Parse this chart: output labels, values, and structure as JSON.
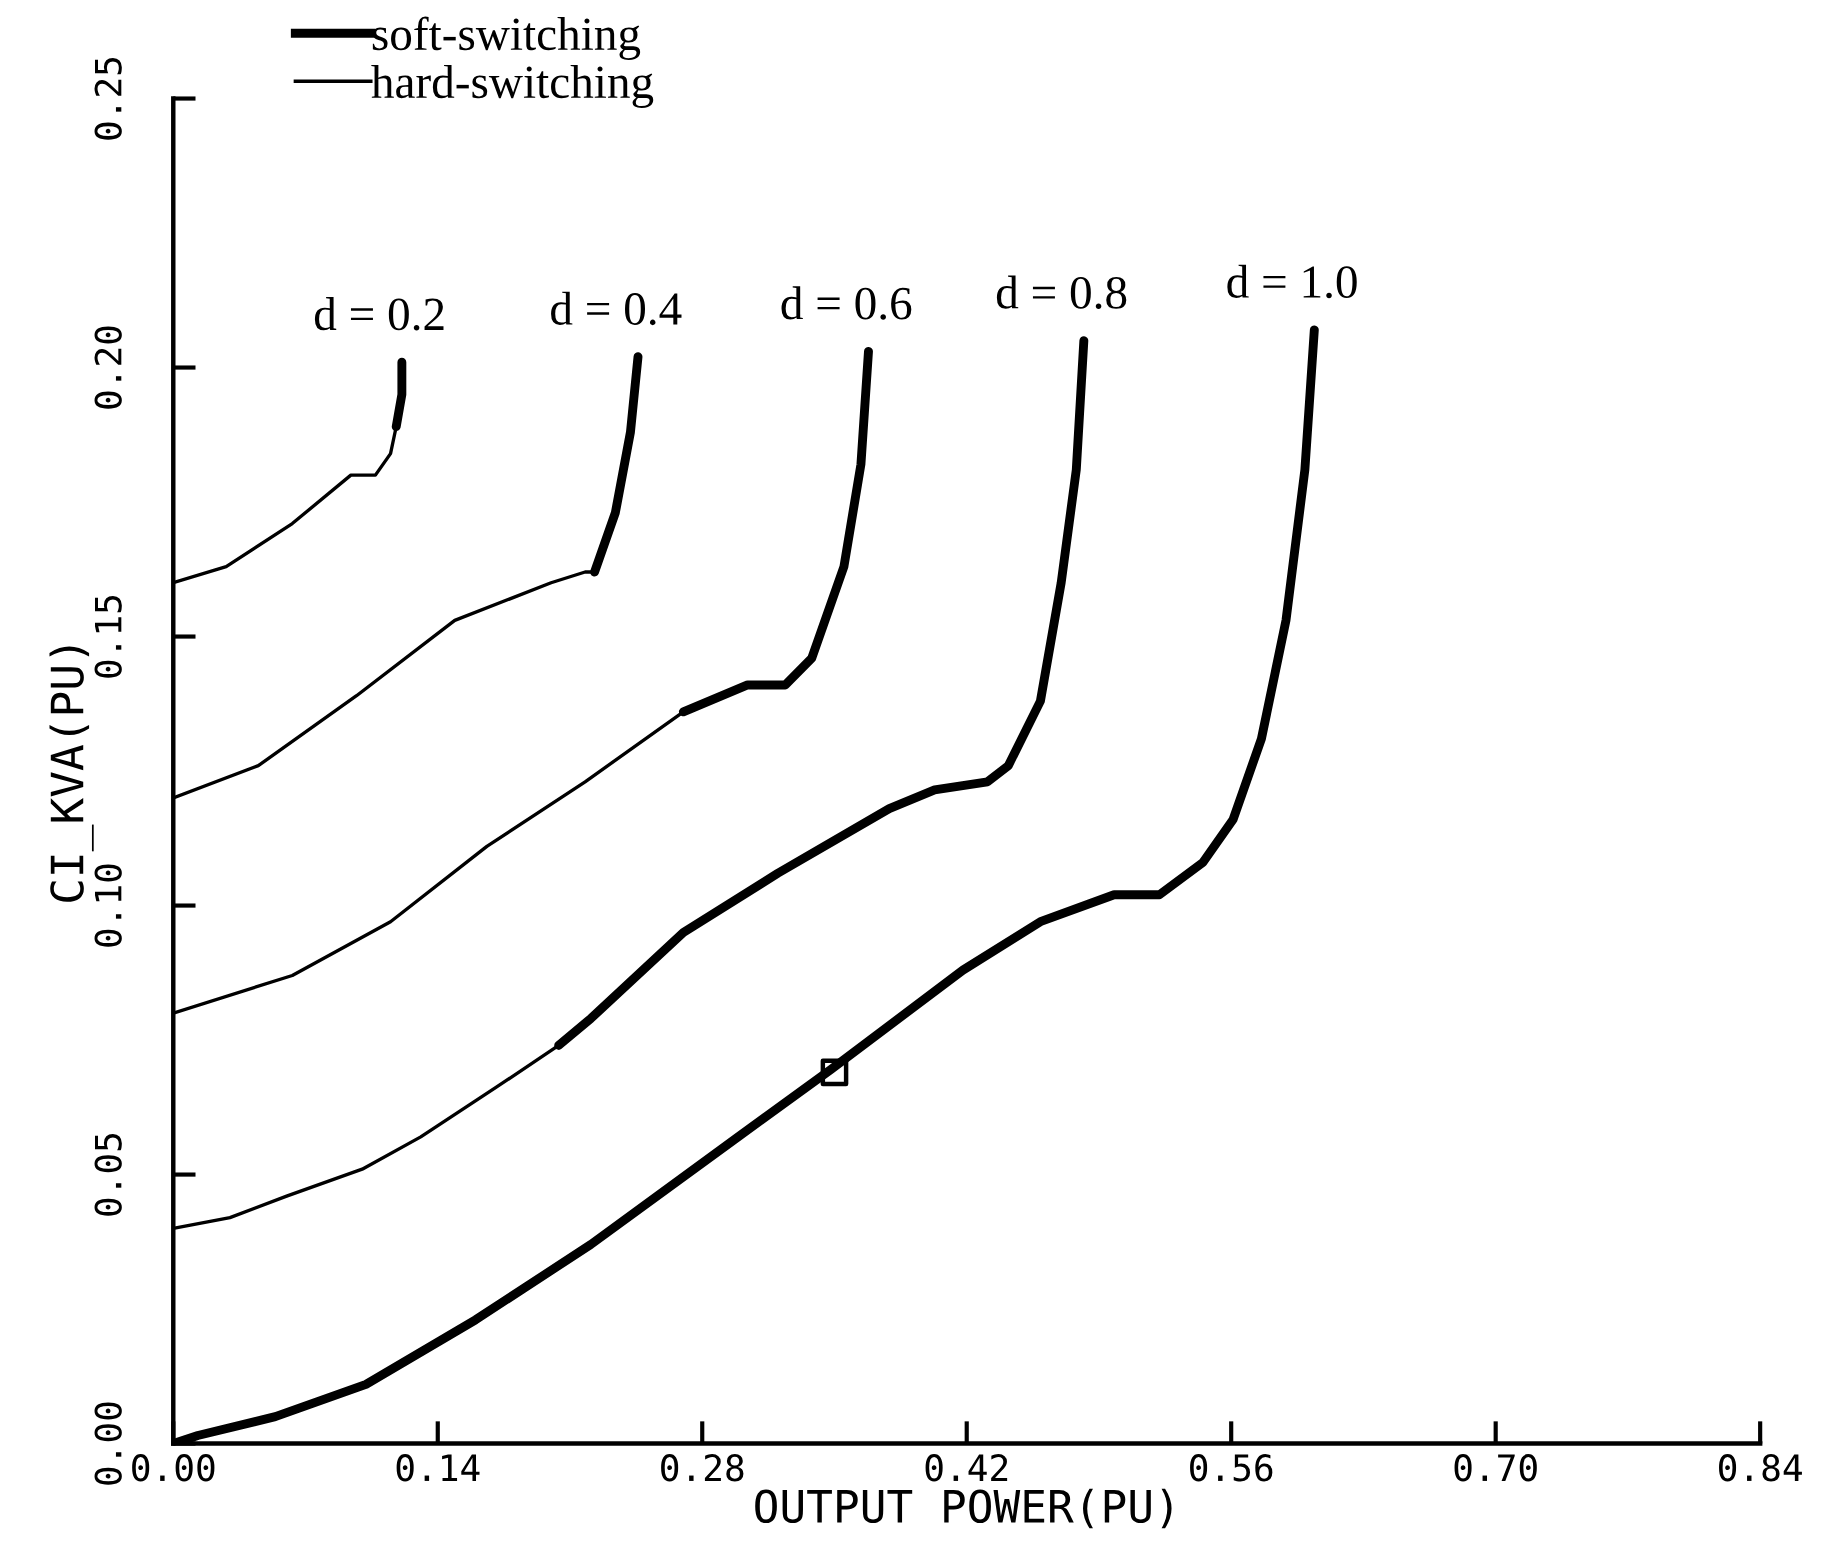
{
  "chart_data": {
    "type": "line",
    "xlabel": "OUTPUT POWER(PU)",
    "ylabel": "CI_KVA(PU)",
    "xlim": [
      0,
      0.84
    ],
    "ylim": [
      0,
      0.25
    ],
    "xticks": [
      {
        "value": 0,
        "label": "0.00"
      },
      {
        "value": 0.14,
        "label": "0.14"
      },
      {
        "value": 0.28,
        "label": "0.28"
      },
      {
        "value": 0.42,
        "label": "0.42"
      },
      {
        "value": 0.56,
        "label": "0.56"
      },
      {
        "value": 0.7,
        "label": "0.70"
      },
      {
        "value": 0.84,
        "label": "0.84"
      }
    ],
    "yticks": [
      {
        "value": 0,
        "label": "0.00"
      },
      {
        "value": 0.05,
        "label": "0.05"
      },
      {
        "value": 0.1,
        "label": "0.10"
      },
      {
        "value": 0.15,
        "label": "0.15"
      },
      {
        "value": 0.2,
        "label": "0.20"
      },
      {
        "value": 0.25,
        "label": "0.25"
      }
    ],
    "grid": false,
    "legend": "top left",
    "marker": "none",
    "line_style": "solid",
    "series": [
      {
        "name": "soft-switching",
        "color": "#000000",
        "x": [
          0.118,
          0.121,
          0.121,
          null,
          0.223,
          0.234,
          0.242,
          0.246,
          null,
          0.27,
          0.304,
          0.324,
          0.338,
          0.355,
          0.364,
          0.368,
          null,
          0.204,
          0.221,
          0.27,
          0.32,
          0.379,
          0.403,
          0.431,
          0.442,
          0.459,
          0.47,
          0.478,
          0.482,
          null,
          0,
          0.013,
          0.054,
          0.102,
          0.16,
          0.221,
          0.297,
          0.348,
          0.418,
          0.459,
          0.498,
          0.522,
          0.545,
          0.561,
          0.576,
          0.589,
          0.599,
          0.604
        ],
        "values": [
          0.189,
          0.195,
          0.201,
          null,
          0.162,
          0.173,
          0.188,
          0.202,
          null,
          0.136,
          0.141,
          0.141,
          0.146,
          0.163,
          0.182,
          0.203,
          null,
          0.074,
          0.079,
          0.095,
          0.106,
          0.118,
          0.1215,
          0.123,
          0.126,
          0.138,
          0.16,
          0.181,
          0.205,
          null,
          0,
          0.0015,
          0.005,
          0.011,
          0.023,
          0.037,
          0.0565,
          0.0695,
          0.088,
          0.097,
          0.102,
          0.102,
          0.108,
          0.116,
          0.131,
          0.153,
          0.181,
          0.207
        ]
      },
      {
        "name": "hard-switching",
        "color": "#000000",
        "x": [
          0,
          0.028,
          0.063,
          0.094,
          0.107,
          0.115,
          0.118,
          null,
          0,
          0.045,
          0.097,
          0.149,
          0.2,
          0.218,
          0.223,
          null,
          0,
          0.063,
          0.115,
          0.166,
          0.218,
          0.27,
          null,
          0,
          0.03,
          0.06,
          0.1,
          0.131,
          0.17,
          0.204
        ],
        "values": [
          0.16,
          0.163,
          0.171,
          0.18,
          0.18,
          0.184,
          0.189,
          null,
          0.12,
          0.126,
          0.139,
          0.153,
          0.16,
          0.162,
          0.162,
          null,
          0.08,
          0.087,
          0.097,
          0.111,
          0.123,
          0.136,
          null,
          0.04,
          0.042,
          0.046,
          0.051,
          0.057,
          0.066,
          0.074
        ]
      },
      {
        "type": "scatter",
        "marker": "square",
        "color": "#000000",
        "x": [
          0.35
        ],
        "values": [
          0.069
        ]
      }
    ],
    "annotations": [
      {
        "text": "d = 0.2",
        "x": 0.121,
        "y": 0.201
      },
      {
        "text": "d = 0.4",
        "x": 0.246,
        "y": 0.202
      },
      {
        "text": "d = 0.6",
        "x": 0.368,
        "y": 0.203
      },
      {
        "text": "d = 0.8",
        "x": 0.482,
        "y": 0.205
      },
      {
        "text": "d = 1.0",
        "x": 0.604,
        "y": 0.207
      }
    ]
  }
}
